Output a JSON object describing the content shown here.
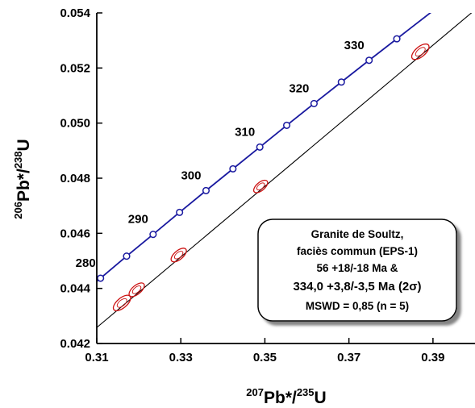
{
  "chart_data": {
    "type": "scatter",
    "title": "",
    "xlabel": {
      "iso_a": "207",
      "elem_a": "Pb*/",
      "iso_b": "235",
      "elem_b": "U"
    },
    "ylabel": {
      "iso_a": "206",
      "elem_a": "Pb*/",
      "iso_b": "238",
      "elem_b": "U"
    },
    "xlim": [
      0.31,
      0.4
    ],
    "ylim": [
      0.042,
      0.054
    ],
    "x_ticks": [
      0.31,
      0.33,
      0.35,
      0.37,
      0.39
    ],
    "x_tick_labels": [
      "0.31",
      "0.33",
      "0.35",
      "0.37",
      "0.39"
    ],
    "y_ticks": [
      0.042,
      0.044,
      0.046,
      0.048,
      0.05,
      0.052,
      0.054
    ],
    "y_tick_labels": [
      "0.042",
      "0.044",
      "0.046",
      "0.048",
      "0.050",
      "0.052",
      "0.054"
    ],
    "grid": false,
    "series": [
      {
        "kind": "concordia",
        "color": "#1a1aa0",
        "ages_ma": [
          280,
          285,
          290,
          295,
          300,
          305,
          310,
          315,
          320,
          325,
          330,
          335
        ],
        "x": [
          0.3109,
          0.3171,
          0.3234,
          0.3297,
          0.336,
          0.3424,
          0.3488,
          0.3552,
          0.3617,
          0.3682,
          0.3748,
          0.3814
        ],
        "y": [
          0.04437,
          0.04517,
          0.04596,
          0.04676,
          0.04755,
          0.04834,
          0.04913,
          0.04992,
          0.05071,
          0.05149,
          0.05228,
          0.05306
        ],
        "age_labels": [
          "280",
          "290",
          "300",
          "310",
          "320",
          "330"
        ]
      },
      {
        "kind": "discordia",
        "color": "#000000",
        "x": [
          0.31,
          0.4
        ],
        "y": [
          0.04258,
          0.05411
        ]
      },
      {
        "kind": "error-ellipses",
        "color": "#cc1111",
        "points": [
          {
            "x": 0.316,
            "y": 0.04347,
            "rx": 0.0025,
            "ry": 0.00018
          },
          {
            "x": 0.3195,
            "y": 0.04395,
            "rx": 0.0022,
            "ry": 0.00016
          },
          {
            "x": 0.3295,
            "y": 0.04521,
            "rx": 0.0022,
            "ry": 0.00016
          },
          {
            "x": 0.349,
            "y": 0.0477,
            "rx": 0.002,
            "ry": 0.00015
          },
          {
            "x": 0.387,
            "y": 0.05259,
            "rx": 0.0025,
            "ry": 0.00018
          }
        ]
      }
    ],
    "annotation": {
      "lines": [
        "Granite de Soultz,",
        "faciès commun (EPS-1)",
        "56 +18/-18 Ma &",
        "334,0 +3,8/-3,5 Ma (2σ)",
        "MSWD = 0,85 (n = 5)"
      ]
    }
  }
}
